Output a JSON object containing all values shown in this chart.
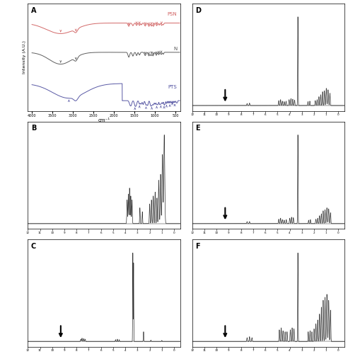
{
  "background_color": "#ffffff",
  "ftir": {
    "psn_color": "#d06060",
    "n_color": "#555555",
    "pts_color": "#5050a0",
    "psn_label": "PSN",
    "n_label": "N",
    "pts_label": "PTS",
    "ylabel": "Intensity (A.U.)",
    "xlabel": "cm⁻¹"
  },
  "nmr": {
    "line_color": "#333333",
    "arrow_color": "#000000"
  },
  "panels": {
    "A": {
      "label": "A"
    },
    "B": {
      "label": "B",
      "arrow": false
    },
    "C": {
      "label": "C",
      "arrow": true,
      "arrow_ppm": 9.2
    },
    "D": {
      "label": "D",
      "arrow": true,
      "arrow_ppm": 9.2
    },
    "E": {
      "label": "E",
      "arrow": true,
      "arrow_ppm": 9.2
    },
    "F": {
      "label": "F",
      "arrow": true,
      "arrow_ppm": 9.2
    }
  }
}
